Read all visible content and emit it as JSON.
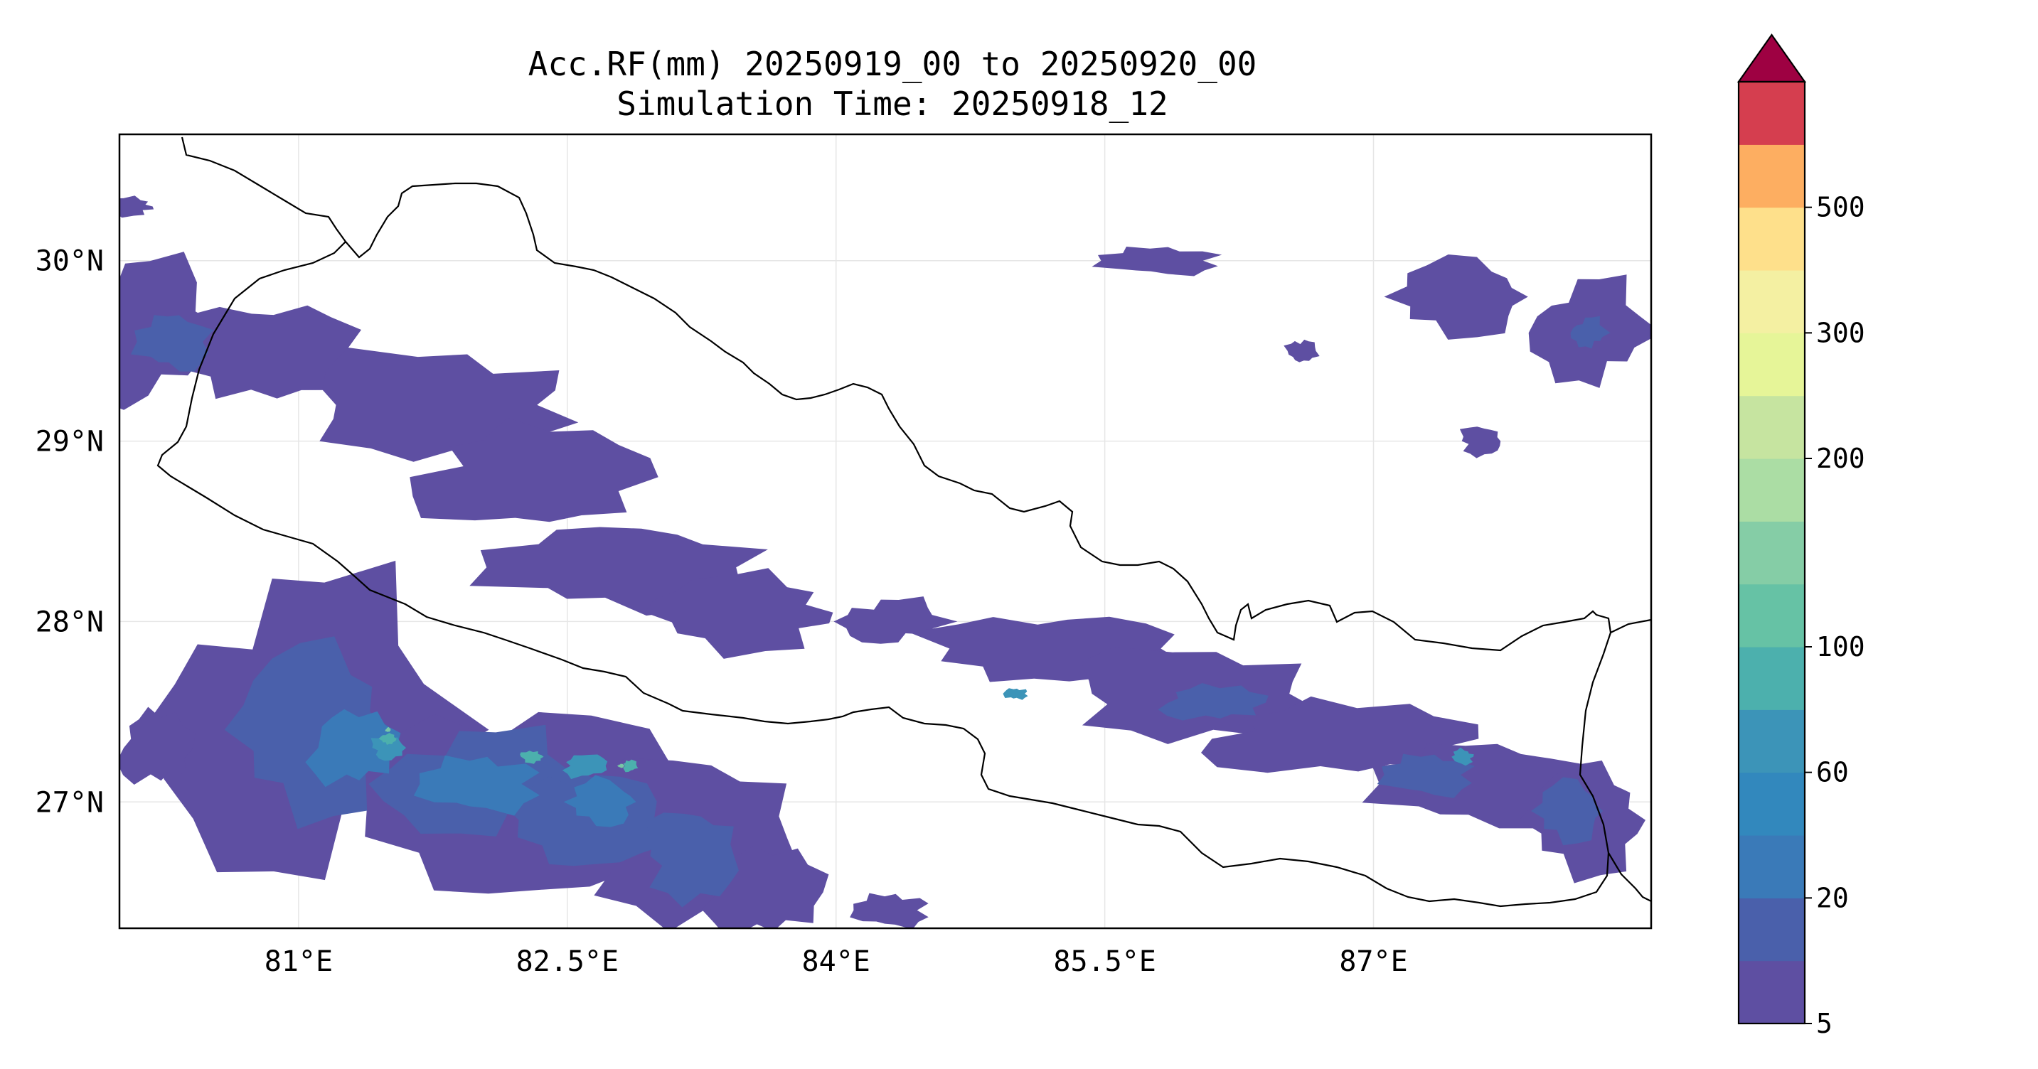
{
  "title": {
    "line1": "Acc.RF(mm) 20250919_00 to 20250920_00",
    "line2": "Simulation Time: 20250918_12"
  },
  "map": {
    "extent": {
      "lon_min": 80.0,
      "lon_max": 88.55,
      "lat_min": 26.3,
      "lat_max": 30.7
    },
    "grid": true,
    "x_ticks": [
      {
        "value": 81.0,
        "label": "81°E"
      },
      {
        "value": 82.5,
        "label": "82.5°E"
      },
      {
        "value": 84.0,
        "label": "84°E"
      },
      {
        "value": 85.5,
        "label": "85.5°E"
      },
      {
        "value": 87.0,
        "label": "87°E"
      }
    ],
    "y_ticks": [
      {
        "value": 30.0,
        "label": "30°N"
      },
      {
        "value": 29.0,
        "label": "29°N"
      },
      {
        "value": 28.0,
        "label": "28°N"
      },
      {
        "value": 27.0,
        "label": "27°N"
      }
    ],
    "border_color": "#000000",
    "rain_bands": [
      {
        "level": "5-10",
        "color": "#5e4fa2",
        "blobs": [
          [
            80.05,
            30.3,
            0.2,
            0.06
          ],
          [
            80.1,
            29.6,
            0.5,
            0.5
          ],
          [
            80.8,
            29.5,
            0.6,
            0.35
          ],
          [
            81.8,
            29.2,
            1.0,
            0.35
          ],
          [
            82.3,
            28.8,
            0.8,
            0.35
          ],
          [
            82.8,
            28.3,
            0.9,
            0.3
          ],
          [
            83.5,
            28.05,
            0.7,
            0.25
          ],
          [
            84.3,
            28.0,
            0.35,
            0.15
          ],
          [
            85.2,
            27.85,
            0.8,
            0.25
          ],
          [
            86.0,
            27.6,
            0.9,
            0.3
          ],
          [
            86.8,
            27.35,
            0.9,
            0.25
          ],
          [
            87.6,
            27.1,
            0.7,
            0.3
          ],
          [
            88.2,
            26.9,
            0.45,
            0.35
          ],
          [
            81.0,
            27.4,
            1.0,
            1.0
          ],
          [
            82.2,
            27.0,
            1.1,
            0.7
          ],
          [
            83.2,
            26.8,
            0.8,
            0.55
          ],
          [
            80.2,
            27.3,
            0.25,
            0.25
          ],
          [
            85.8,
            30.0,
            0.4,
            0.1
          ],
          [
            87.5,
            29.8,
            0.5,
            0.25
          ],
          [
            88.2,
            29.6,
            0.4,
            0.35
          ],
          [
            86.6,
            29.5,
            0.1,
            0.08
          ],
          [
            87.6,
            29.0,
            0.15,
            0.1
          ],
          [
            83.6,
            26.5,
            0.4,
            0.3
          ],
          [
            84.3,
            26.4,
            0.25,
            0.12
          ]
        ]
      },
      {
        "level": "10-20",
        "color": "#4a60ab",
        "blobs": [
          [
            80.3,
            29.55,
            0.25,
            0.2
          ],
          [
            81.1,
            27.4,
            0.6,
            0.55
          ],
          [
            82.0,
            27.1,
            0.7,
            0.35
          ],
          [
            82.6,
            26.9,
            0.5,
            0.35
          ],
          [
            83.2,
            26.7,
            0.35,
            0.3
          ],
          [
            86.1,
            27.55,
            0.35,
            0.12
          ],
          [
            87.3,
            27.15,
            0.3,
            0.15
          ],
          [
            88.1,
            26.95,
            0.25,
            0.2
          ],
          [
            88.2,
            29.6,
            0.12,
            0.1
          ]
        ]
      },
      {
        "level": "20-40",
        "color": "#3a7ab8",
        "blobs": [
          [
            81.3,
            27.3,
            0.3,
            0.25
          ],
          [
            82.0,
            27.1,
            0.4,
            0.2
          ],
          [
            82.7,
            27.0,
            0.25,
            0.15
          ]
        ]
      },
      {
        "level": "40-60",
        "color": "#3c94b8",
        "blobs": [
          [
            81.5,
            27.3,
            0.12,
            0.08
          ],
          [
            82.6,
            27.2,
            0.15,
            0.08
          ],
          [
            85.0,
            27.6,
            0.08,
            0.04
          ],
          [
            87.5,
            27.25,
            0.08,
            0.05
          ]
        ]
      },
      {
        "level": "60-80",
        "color": "#4cb0ad",
        "blobs": [
          [
            81.5,
            27.35,
            0.05,
            0.04
          ],
          [
            82.3,
            27.25,
            0.08,
            0.04
          ],
          [
            82.85,
            27.2,
            0.05,
            0.04
          ]
        ]
      },
      {
        "level": "80-100",
        "color": "#78c7a6",
        "blobs": [
          [
            81.5,
            27.4,
            0.02,
            0.015
          ],
          [
            82.8,
            27.2,
            0.02,
            0.015
          ]
        ]
      }
    ]
  },
  "colorbar": {
    "levels": [
      5,
      10,
      20,
      40,
      60,
      80,
      100,
      125,
      150,
      200,
      250,
      300,
      350,
      500
    ],
    "colors": [
      "#5e4fa2",
      "#4a60ab",
      "#3a7ab8",
      "#3288bd",
      "#3c94b8",
      "#4cb0ad",
      "#66c2a5",
      "#85cda6",
      "#abdda4",
      "#c6e4a0",
      "#e6f598",
      "#f4f0a2",
      "#fee08b",
      "#fdae61",
      "#d53e4f"
    ],
    "extend_color": "#9e0142",
    "tick_labels": [
      {
        "value": 5,
        "label": "5"
      },
      {
        "value": 20,
        "label": "20"
      },
      {
        "value": 60,
        "label": "60"
      },
      {
        "value": 100,
        "label": "100"
      },
      {
        "value": 200,
        "label": "200"
      },
      {
        "value": 300,
        "label": "300"
      },
      {
        "value": 500,
        "label": "500"
      }
    ]
  }
}
